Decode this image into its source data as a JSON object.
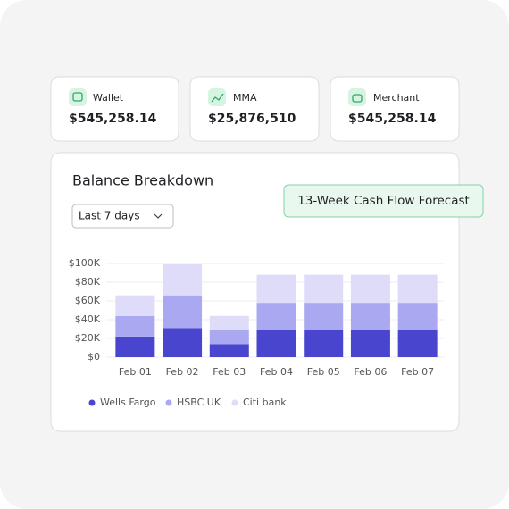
{
  "cards": [
    {
      "label": "Wallet",
      "amount": "$545,258.14"
    },
    {
      "label": "MMA",
      "amount": "$25,876,510"
    },
    {
      "label": "Merchant",
      "amount": "$545,258.14"
    }
  ],
  "dropdown": {
    "label": "Last 7 days"
  },
  "badge": {
    "label": "13-Week Cash Flow Forecast"
  },
  "chart_data": {
    "type": "stacked_bar",
    "title": "Balance Breakdown",
    "categories": [
      "Feb 01",
      "Feb 02",
      "Feb 03",
      "Feb 04",
      "Feb 05",
      "Feb 06",
      "Feb 07"
    ],
    "series": [
      {
        "name": "Wells Fargo",
        "color": "#4a45cf",
        "values": [
          22000,
          31000,
          14000,
          29000,
          29000,
          29000,
          29000
        ]
      },
      {
        "name": "HSBC UK",
        "color": "#aaa8f1",
        "values": [
          22000,
          35000,
          15000,
          29000,
          29000,
          29000,
          29000
        ]
      },
      {
        "name": "Citi bank",
        "color": "#dedcf8",
        "values": [
          22000,
          33000,
          15000,
          30000,
          30000,
          30000,
          30000
        ]
      }
    ],
    "ylim": [
      0,
      100000
    ],
    "yticks": [
      {
        "value": 0,
        "label": "$0"
      },
      {
        "value": 20000,
        "label": "$20K"
      },
      {
        "value": 40000,
        "label": "$40K"
      },
      {
        "value": 60000,
        "label": "$60K"
      },
      {
        "value": 80000,
        "label": "$80K"
      },
      {
        "value": 100000,
        "label": "$100K"
      }
    ],
    "grid": true,
    "legend": "bottom"
  }
}
